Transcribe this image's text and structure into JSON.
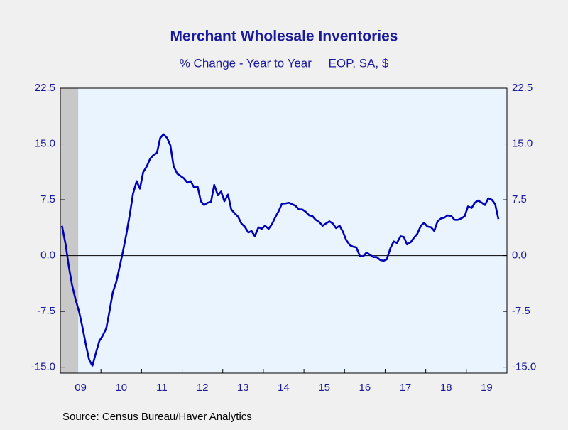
{
  "chart_data": {
    "type": "line",
    "title": "Merchant Wholesale Inventories",
    "subtitle": "% Change - Year to Year     EOP, SA, $",
    "source": "Source:  Census Bureau/Haver Analytics",
    "xlim": [
      2009,
      2020
    ],
    "xticks": [
      {
        "value": 2009.5,
        "label": "09"
      },
      {
        "value": 2010.5,
        "label": "10"
      },
      {
        "value": 2011.5,
        "label": "11"
      },
      {
        "value": 2012.5,
        "label": "12"
      },
      {
        "value": 2013.5,
        "label": "13"
      },
      {
        "value": 2014.5,
        "label": "14"
      },
      {
        "value": 2015.5,
        "label": "15"
      },
      {
        "value": 2016.5,
        "label": "16"
      },
      {
        "value": 2017.5,
        "label": "17"
      },
      {
        "value": 2018.5,
        "label": "18"
      },
      {
        "value": 2019.5,
        "label": "19"
      }
    ],
    "ylim": [
      -15.8,
      22.5
    ],
    "yticks": [
      {
        "value": -15,
        "label": "-15.0"
      },
      -7.5,
      {
        "value": 0,
        "label": "0.0"
      },
      7.5,
      {
        "value": 15,
        "label": "15.0"
      },
      22.5
    ],
    "y2lim": [
      -15.8,
      22.5
    ],
    "y2ticks": [
      {
        "value": -15,
        "label": "-15.0"
      },
      -7.5,
      {
        "value": 0,
        "label": "0.0"
      },
      7.5,
      {
        "value": 15,
        "label": "15.0"
      },
      22.5
    ],
    "shaded_ranges": [
      [
        2009,
        2009.44
      ]
    ],
    "shade_color": "#c8c8c8",
    "series": [
      {
        "color": "#0000b4",
        "x": [
          2009.04,
          2009.13,
          2009.21,
          2009.29,
          2009.38,
          2009.46,
          2009.54,
          2009.63,
          2009.71,
          2009.79,
          2009.88,
          2009.96,
          2010.04,
          2010.13,
          2010.21,
          2010.29,
          2010.38,
          2010.46,
          2010.54,
          2010.63,
          2010.71,
          2010.79,
          2010.88,
          2010.96,
          2011.04,
          2011.13,
          2011.21,
          2011.29,
          2011.38,
          2011.46,
          2011.54,
          2011.63,
          2011.71,
          2011.79,
          2011.88,
          2011.96,
          2012.04,
          2012.13,
          2012.21,
          2012.29,
          2012.38,
          2012.46,
          2012.54,
          2012.63,
          2012.71,
          2012.79,
          2012.88,
          2012.96,
          2013.04,
          2013.13,
          2013.21,
          2013.29,
          2013.38,
          2013.46,
          2013.54,
          2013.63,
          2013.71,
          2013.79,
          2013.88,
          2013.96,
          2014.04,
          2014.13,
          2014.21,
          2014.29,
          2014.38,
          2014.46,
          2014.54,
          2014.63,
          2014.71,
          2014.79,
          2014.88,
          2014.96,
          2015.04,
          2015.13,
          2015.21,
          2015.29,
          2015.38,
          2015.46,
          2015.54,
          2015.63,
          2015.71,
          2015.79,
          2015.88,
          2015.96,
          2016.04,
          2016.13,
          2016.21,
          2016.29,
          2016.38,
          2016.46,
          2016.54,
          2016.63,
          2016.71,
          2016.79,
          2016.88,
          2016.96,
          2017.04,
          2017.13,
          2017.21,
          2017.29,
          2017.38,
          2017.46,
          2017.54,
          2017.63,
          2017.71,
          2017.79,
          2017.88,
          2017.96,
          2018.04,
          2018.13,
          2018.21,
          2018.29,
          2018.38,
          2018.46,
          2018.54,
          2018.63,
          2018.71,
          2018.79,
          2018.88,
          2018.96,
          2019.04,
          2019.13,
          2019.21,
          2019.29,
          2019.38,
          2019.46,
          2019.54,
          2019.63,
          2019.71,
          2019.79
        ],
        "values": [
          4.0,
          1.5,
          -1.5,
          -4.0,
          -6,
          -7.5,
          -9.5,
          -12,
          -14,
          -14.8,
          -13,
          -11.5,
          -10.8,
          -9.8,
          -7.5,
          -5,
          -3.5,
          -1.5,
          0.5,
          3,
          5.5,
          8.3,
          10,
          9,
          11.2,
          12,
          13,
          13.5,
          13.8,
          15.8,
          16.3,
          15.8,
          14.8,
          12,
          11,
          10.7,
          10.4,
          9.8,
          10,
          9.2,
          9.3,
          7.3,
          6.8,
          7.1,
          7.2,
          9.5,
          8.1,
          8.6,
          7.3,
          8.2,
          6.2,
          5.7,
          5.2,
          4.3,
          3.9,
          3.1,
          3.3,
          2.6,
          3.8,
          3.6,
          4,
          3.6,
          4.2,
          5.1,
          6,
          7,
          7,
          7.1,
          6.9,
          6.7,
          6.2,
          6.2,
          5.9,
          5.4,
          5.3,
          4.8,
          4.5,
          4,
          4.3,
          4.6,
          4.3,
          3.7,
          4,
          3.2,
          2.1,
          1.4,
          1.2,
          1.1,
          -0.1,
          -0.1,
          0.4,
          0.1,
          -0.2,
          -0.2,
          -0.6,
          -0.7,
          -0.5,
          1,
          1.9,
          1.7,
          2.6,
          2.5,
          1.5,
          1.8,
          2.4,
          2.9,
          4,
          4.4,
          3.9,
          3.8,
          3.3,
          4.6,
          5,
          5.1,
          5.4,
          5.3,
          4.8,
          4.8,
          5,
          5.3,
          6.6,
          6.4,
          7.1,
          7.4,
          7.1,
          6.8,
          7.7,
          7.5,
          6.9,
          4.9
        ]
      }
    ]
  }
}
